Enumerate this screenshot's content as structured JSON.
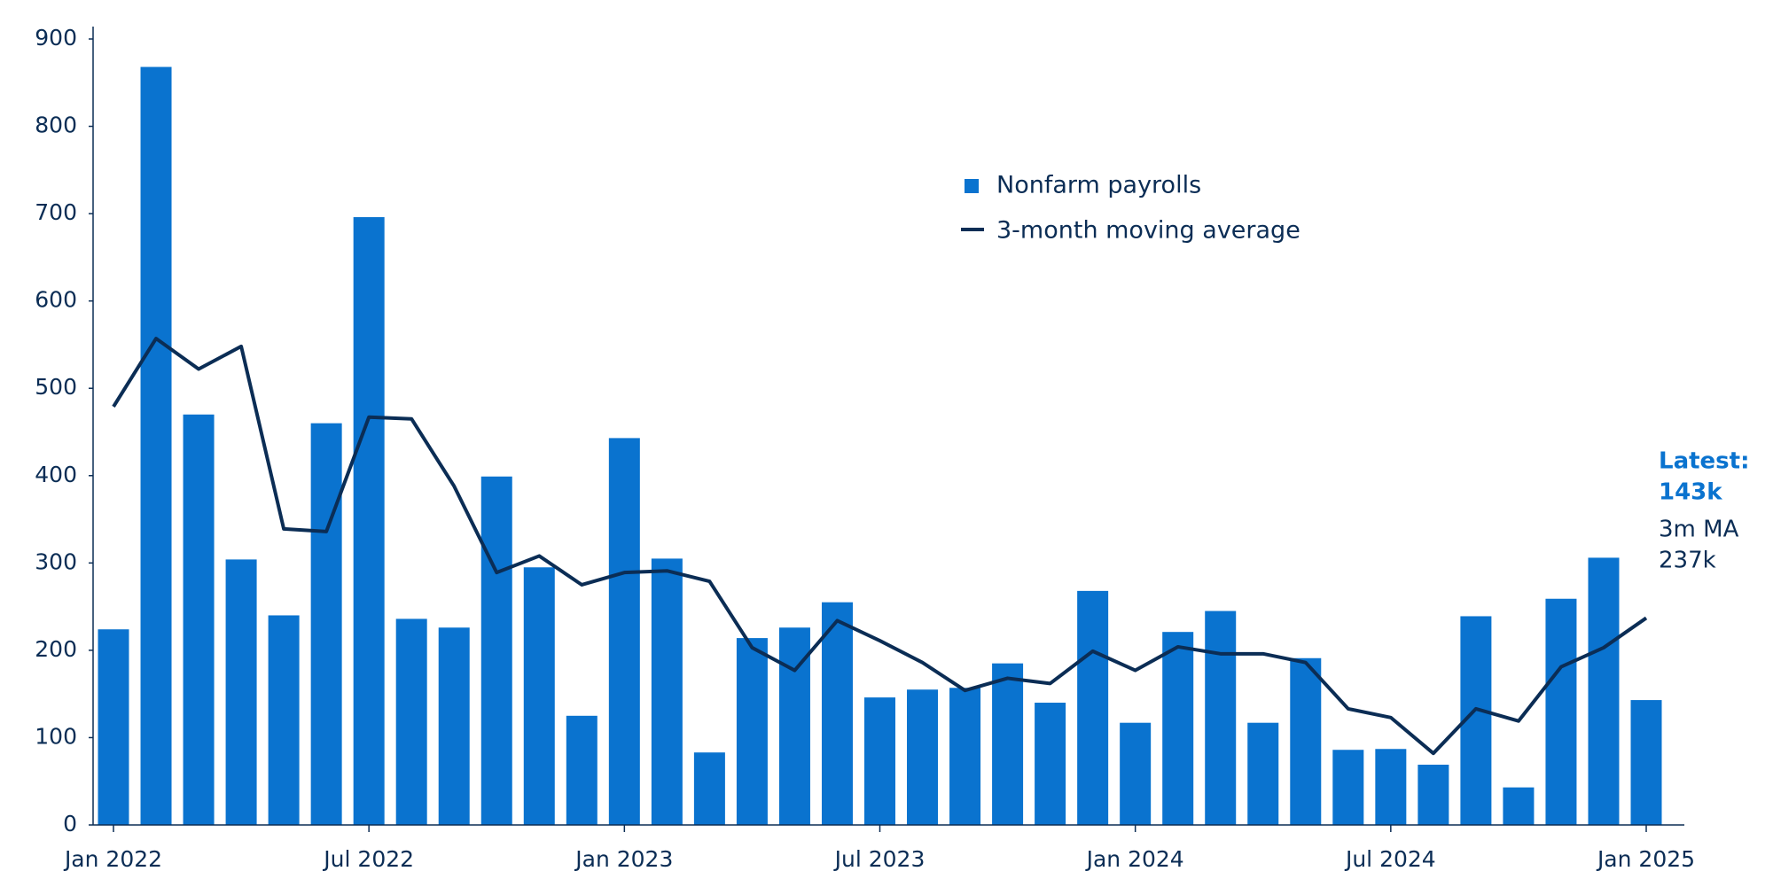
{
  "chart_data": {
    "type": "bar",
    "categories": [
      "Jan 2022",
      null,
      null,
      null,
      null,
      null,
      "Jul 2022",
      null,
      null,
      null,
      null,
      null,
      "Jan 2023",
      null,
      null,
      null,
      null,
      null,
      "Jul 2023",
      null,
      null,
      null,
      null,
      null,
      "Jan 2024",
      null,
      null,
      null,
      null,
      null,
      "Jul 2024",
      null,
      null,
      null,
      null,
      null,
      "Jan 2025"
    ],
    "series": [
      {
        "name": "Nonfarm payrolls",
        "type": "bar",
        "color": "#0a73cf",
        "values": [
          224,
          868,
          470,
          304,
          240,
          460,
          696,
          236,
          226,
          399,
          295,
          125,
          443,
          305,
          83,
          214,
          226,
          255,
          146,
          155,
          157,
          185,
          140,
          268,
          117,
          221,
          245,
          117,
          191,
          86,
          87,
          69,
          239,
          43,
          259,
          306,
          143
        ]
      },
      {
        "name": "3-month moving average",
        "type": "line",
        "color": "#0b2d55",
        "values": [
          479,
          557,
          522,
          548,
          339,
          336,
          467,
          465,
          388,
          289,
          308,
          275,
          289,
          291,
          279,
          203,
          177,
          234,
          211,
          186,
          154,
          168,
          162,
          199,
          177,
          204,
          196,
          196,
          186,
          133,
          123,
          82,
          133,
          119,
          181,
          203,
          237
        ]
      }
    ],
    "ylim": [
      0,
      900
    ],
    "yticks": [
      0,
      100,
      200,
      300,
      400,
      500,
      600,
      700,
      800,
      900
    ],
    "annotations": [
      "Latest:",
      "143k",
      "3m MA",
      "237k"
    ],
    "annotation_colors": [
      "#0a73cf",
      "#0a73cf",
      "#0b2d55",
      "#0b2d55"
    ]
  }
}
